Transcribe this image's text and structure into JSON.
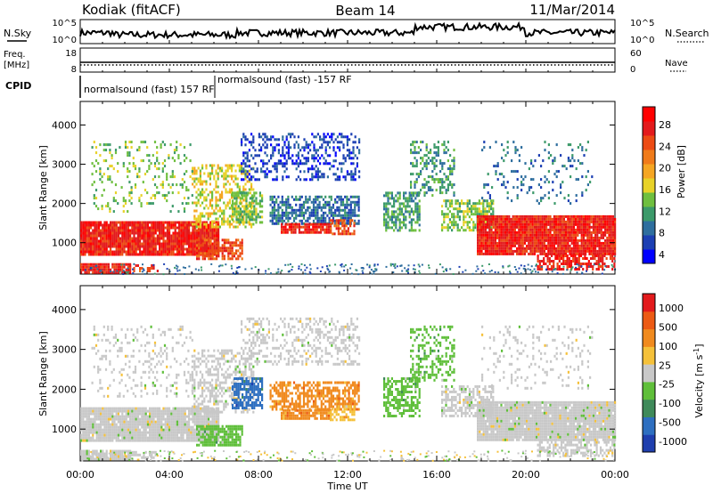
{
  "header": {
    "station": "Kodiak (fitACF)",
    "beam": "Beam 14",
    "date": "11/Mar/2014"
  },
  "strips": {
    "nsky_label": "N.Sky",
    "nsky_ticks": [
      "10^5",
      "10^0"
    ],
    "nsearch_label": "N.Search",
    "nsearch_ticks": [
      "10^5",
      "10^0"
    ],
    "freq_label_line1": "Freq.",
    "freq_label_line2": "[MHz]",
    "freq_ticks": [
      "18",
      "8"
    ],
    "nave_label": "Nave",
    "nave_ticks": [
      "60",
      "0"
    ],
    "cpid_label": "CPID",
    "cpid_entries": [
      "normalsound (fast) 157 RF",
      "normalsound (fast) -157 RF"
    ]
  },
  "chart_data": [
    {
      "type": "heatmap",
      "name": "power",
      "ylabel": "Slant Range [km]",
      "xlabel": "Time UT",
      "x_range_hours": [
        0,
        24
      ],
      "x_ticks": [
        "00:00",
        "04:00",
        "08:00",
        "12:00",
        "16:00",
        "20:00",
        "00:00"
      ],
      "y_range_km": [
        200,
        4600
      ],
      "y_ticks": [
        1000,
        2000,
        3000,
        4000
      ],
      "colorbar": {
        "label": "Power [dB]",
        "ticks": [
          "4",
          "8",
          "12",
          "16",
          "20",
          "24",
          "28"
        ],
        "colors": [
          "#0000ff",
          "#1c3fb3",
          "#2e6e9e",
          "#3c9a6a",
          "#6fbf3f",
          "#e8d228",
          "#f5a623",
          "#f07b1a",
          "#ec4b14",
          "#e31a1c",
          "#ff0000"
        ]
      }
    },
    {
      "type": "heatmap",
      "name": "velocity",
      "ylabel": "Slant Range [km]",
      "xlabel": "Time UT",
      "x_range_hours": [
        0,
        24
      ],
      "x_ticks": [
        "00:00",
        "04:00",
        "08:00",
        "12:00",
        "16:00",
        "20:00",
        "00:00"
      ],
      "y_range_km": [
        200,
        4600
      ],
      "y_ticks": [
        1000,
        2000,
        3000,
        4000
      ],
      "colorbar": {
        "label": "Velocity [m s^-1]",
        "ticks": [
          "1000",
          "500",
          "100",
          "25",
          "-25",
          "-100",
          "-500",
          "-1000"
        ],
        "colors": [
          "#1f3fae",
          "#2e6fc0",
          "#3f8a5a",
          "#5fbf3a",
          "#c8c8c8",
          "#f5c13a",
          "#f08a1e",
          "#ec5a14",
          "#e31a1c"
        ]
      }
    }
  ]
}
